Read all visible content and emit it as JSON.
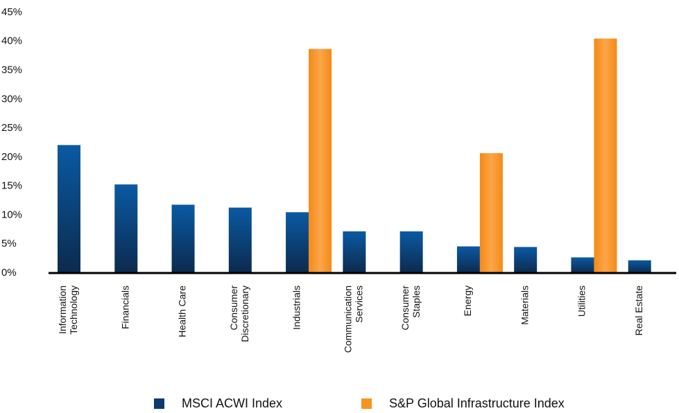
{
  "chart_data": {
    "type": "bar",
    "categories": [
      [
        "Information",
        "Technology"
      ],
      [
        "Financials"
      ],
      [
        "Health Care"
      ],
      [
        "Consumer",
        "Discretionary"
      ],
      [
        "Industrials"
      ],
      [
        "Communication",
        "Services"
      ],
      [
        "Consumer",
        "Staples"
      ],
      [
        "Energy"
      ],
      [
        "Materials"
      ],
      [
        "Utilities"
      ],
      [
        "Real Estate"
      ]
    ],
    "series": [
      {
        "name": "MSCI ACWI Index",
        "color": "#0b3a6e",
        "values": [
          22.1,
          15.3,
          11.8,
          11.3,
          10.5,
          7.2,
          7.2,
          4.6,
          4.5,
          2.7,
          2.2
        ]
      },
      {
        "name": "S&P Global Infrastructure Index",
        "color": "#f7941d",
        "values": [
          null,
          null,
          null,
          null,
          38.7,
          null,
          null,
          20.7,
          null,
          40.5,
          null
        ]
      }
    ],
    "ylim": [
      0,
      45
    ],
    "yticks": [
      {
        "value": 0,
        "label": "0%"
      },
      {
        "value": 5,
        "label": "5%"
      },
      {
        "value": 10,
        "label": "10%"
      },
      {
        "value": 15,
        "label": "15%"
      },
      {
        "value": 20,
        "label": "20%"
      },
      {
        "value": 25,
        "label": "25%"
      },
      {
        "value": 30,
        "label": "30%"
      },
      {
        "value": 35,
        "label": "35%"
      },
      {
        "value": 40,
        "label": "40%"
      },
      {
        "value": 45,
        "label": "45%"
      }
    ],
    "grid": false
  }
}
